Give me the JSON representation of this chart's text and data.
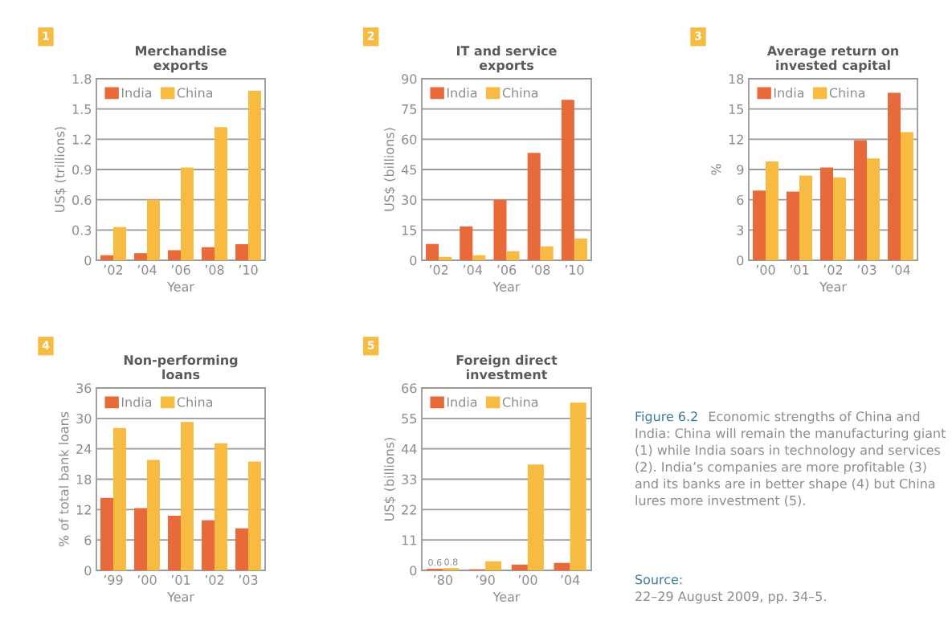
{
  "chart_data": [
    {
      "type": "bar",
      "title": "Merchandise\nexports",
      "annotations": [
        "1"
      ],
      "xlabel": "Year",
      "ylabel": "US$ (trillions)",
      "categories": [
        "’02",
        "’04",
        "’06",
        "’08",
        "’10"
      ],
      "ylim": [
        0,
        1.8
      ],
      "yticks": [
        0,
        0.3,
        0.6,
        0.9,
        1.2,
        1.5,
        1.8
      ],
      "grid": "y",
      "legend": "top left",
      "series": [
        {
          "name": "India",
          "color": "#e8693a",
          "values": [
            0.05,
            0.07,
            0.1,
            0.13,
            0.16
          ]
        },
        {
          "name": "China",
          "color": "#f8bb42",
          "values": [
            0.33,
            0.6,
            0.92,
            1.32,
            1.68
          ]
        }
      ]
    },
    {
      "type": "bar",
      "title": "IT and service\nexports",
      "annotations": [
        "2"
      ],
      "xlabel": "Year",
      "ylabel": "US$ (billions)",
      "categories": [
        "’02",
        "’04",
        "’06",
        "’08",
        "’10"
      ],
      "ylim": [
        0,
        90
      ],
      "yticks": [
        0,
        15,
        30,
        45,
        60,
        75,
        90
      ],
      "grid": "y",
      "legend": "top left",
      "series": [
        {
          "name": "India",
          "color": "#e8693a",
          "values": [
            8.1,
            16.8,
            30.0,
            53.3,
            79.5
          ]
        },
        {
          "name": "China",
          "color": "#f8bb42",
          "values": [
            1.7,
            2.5,
            4.5,
            6.9,
            10.8
          ]
        }
      ]
    },
    {
      "type": "bar",
      "title": "Average return on\ninvested capital",
      "annotations": [
        "3"
      ],
      "xlabel": "Year",
      "ylabel": "%",
      "categories": [
        "’00",
        "’01",
        "’02",
        "’03",
        "’04"
      ],
      "ylim": [
        0,
        18
      ],
      "yticks": [
        0,
        3,
        6,
        9,
        12,
        15,
        18
      ],
      "grid": "y",
      "legend": "top left",
      "series": [
        {
          "name": "India",
          "color": "#e8693a",
          "values": [
            6.9,
            6.8,
            9.2,
            11.9,
            16.6
          ]
        },
        {
          "name": "China",
          "color": "#f8bb42",
          "values": [
            9.8,
            8.4,
            8.2,
            10.1,
            12.7
          ]
        }
      ]
    },
    {
      "type": "bar",
      "title": "Non-performing\nloans",
      "annotations": [
        "4"
      ],
      "xlabel": "Year",
      "ylabel": "% of total bank loans",
      "categories": [
        "’99",
        "’00",
        "’01",
        "’02",
        "’03"
      ],
      "ylim": [
        0,
        36
      ],
      "yticks": [
        0,
        6,
        12,
        18,
        24,
        30,
        36
      ],
      "grid": "y",
      "legend": "top left",
      "series": [
        {
          "name": "India",
          "color": "#e8693a",
          "values": [
            14.3,
            12.3,
            10.8,
            9.9,
            8.3
          ]
        },
        {
          "name": "China",
          "color": "#f8bb42",
          "values": [
            28.1,
            21.8,
            29.3,
            25.1,
            21.5
          ]
        }
      ]
    },
    {
      "type": "bar",
      "title": "Foreign direct\ninvestment",
      "annotations": [
        "5"
      ],
      "xlabel": "Year",
      "ylabel": "US$ (billions)",
      "categories": [
        "’80",
        "’90",
        "’00",
        "’04"
      ],
      "ylim": [
        0,
        66
      ],
      "yticks": [
        0,
        11,
        22,
        33,
        44,
        55,
        66
      ],
      "grid": "y",
      "legend": "top left",
      "series": [
        {
          "name": "India",
          "color": "#e8693a",
          "values": [
            0.6,
            0.4,
            2.1,
            2.7
          ],
          "value_labels": [
            "0.6",
            null,
            null,
            null
          ]
        },
        {
          "name": "China",
          "color": "#f8bb42",
          "values": [
            0.8,
            3.3,
            38.3,
            60.7
          ],
          "value_labels": [
            "0.8",
            null,
            null,
            null
          ]
        }
      ]
    },
    {
      "type": "other",
      "annotations": [
        "Figure 6.2",
        "Economic strengths of China and India: China will remain the manufacturing giant (1) while India soars in technology and services (2). India’s companies are more profitable (3) and its banks are in better shape (4) but China lures more investment (5).",
        "Source:",
        "22–29 August 2009, pp. 34–5."
      ]
    }
  ]
}
